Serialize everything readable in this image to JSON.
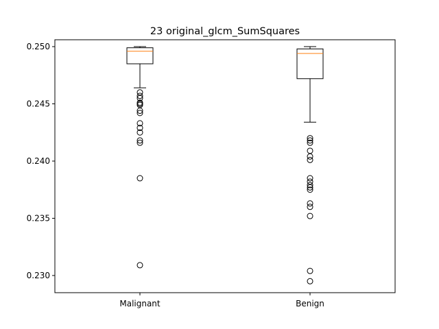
{
  "chart_data": {
    "type": "box",
    "title": "23 original_glcm_SumSquares",
    "xlabel": "",
    "ylabel": "",
    "categories": [
      "Malignant",
      "Benign"
    ],
    "ylim": [
      0.2285,
      0.2506
    ],
    "yticks": [
      0.23,
      0.235,
      0.24,
      0.245,
      0.25
    ],
    "ytick_labels": [
      "0.230",
      "0.235",
      "0.240",
      "0.245",
      "0.250"
    ],
    "grid": false,
    "boxes": [
      {
        "category": "Malignant",
        "whisker_low": 0.2464,
        "q1": 0.2485,
        "median": 0.2496,
        "q3": 0.2499,
        "whisker_high": 0.25,
        "outliers": [
          0.246,
          0.2457,
          0.2455,
          0.2451,
          0.245,
          0.2449,
          0.2444,
          0.2442,
          0.2433,
          0.2429,
          0.2425,
          0.2418,
          0.2416,
          0.2385,
          0.2309
        ]
      },
      {
        "category": "Benign",
        "whisker_low": 0.2434,
        "q1": 0.2472,
        "median": 0.2494,
        "q3": 0.2498,
        "whisker_high": 0.25,
        "outliers": [
          0.242,
          0.2418,
          0.2416,
          0.2409,
          0.2404,
          0.2401,
          0.2385,
          0.2382,
          0.2379,
          0.2377,
          0.2375,
          0.2363,
          0.236,
          0.2352,
          0.2304,
          0.2295
        ]
      }
    ],
    "colors": {
      "box": "#000000",
      "median": "#ff7f0e",
      "outlier": "#000000"
    }
  }
}
